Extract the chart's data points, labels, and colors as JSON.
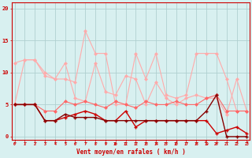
{
  "x": [
    0,
    1,
    2,
    3,
    4,
    5,
    6,
    7,
    8,
    9,
    10,
    11,
    12,
    13,
    14,
    15,
    16,
    17,
    18,
    19,
    20,
    21,
    22,
    23
  ],
  "line1": [
    11.5,
    12,
    12,
    9.5,
    9,
    9,
    8.5,
    16.5,
    13,
    13,
    5,
    5,
    13,
    9,
    13,
    6.5,
    6,
    6.5,
    13,
    13,
    13,
    9,
    4,
    4
  ],
  "line2": [
    5,
    12,
    12,
    10,
    9,
    11.5,
    6,
    5.5,
    11.5,
    7,
    6.5,
    9.5,
    9,
    5,
    8.5,
    6,
    5,
    6,
    6.5,
    6,
    6,
    3.5,
    9,
    4
  ],
  "line3": [
    5,
    5,
    5,
    4,
    4,
    5.5,
    5,
    5.5,
    5,
    4.5,
    5.5,
    5,
    4.5,
    5.5,
    5,
    5,
    5.5,
    5,
    5,
    6,
    6.5,
    4,
    4,
    4
  ],
  "line4": [
    5,
    5,
    5,
    2.5,
    2.5,
    3,
    3.5,
    4,
    3.5,
    2.5,
    2.5,
    4,
    1.5,
    2.5,
    2.5,
    2.5,
    2.5,
    2.5,
    2.5,
    2.5,
    0.5,
    1,
    1.5,
    0.5
  ],
  "line5": [
    5,
    5,
    5,
    2.5,
    2.5,
    3.5,
    3,
    3,
    3,
    2.5,
    2.5,
    2.5,
    2.5,
    2.5,
    2.5,
    2.5,
    2.5,
    2.5,
    2.5,
    4,
    6.5,
    0,
    0,
    0
  ],
  "bg_color": "#d8f0f0",
  "grid_color": "#b0d0d0",
  "line1_color": "#ffaaaa",
  "line2_color": "#ffaaaa",
  "line3_color": "#ff6666",
  "line4_color": "#cc0000",
  "line5_color": "#880000",
  "xlabel": "Vent moyen/en rafales ( km/h )",
  "ylabel_ticks": [
    0,
    5,
    10,
    15,
    20
  ],
  "xlim": [
    -0.3,
    23.3
  ],
  "ylim": [
    -0.5,
    21
  ],
  "title": ""
}
